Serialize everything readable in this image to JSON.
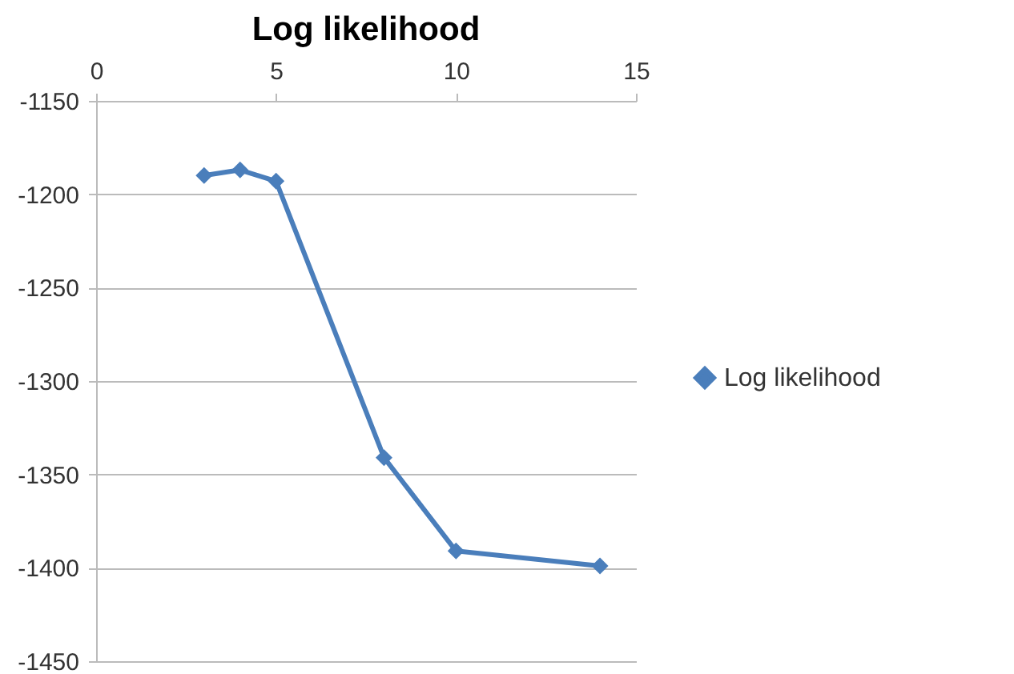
{
  "chart_data": {
    "type": "line",
    "title": "Log likelihood",
    "x": [
      3,
      4,
      5,
      8,
      10,
      14
    ],
    "series": [
      {
        "name": "Log likelihood",
        "color": "#4a7ebb",
        "values": [
          -1190,
          -1187,
          -1193,
          -1341,
          -1391,
          -1399
        ]
      }
    ],
    "xlim": [
      0,
      15
    ],
    "xticks": [
      0,
      5,
      10,
      15
    ],
    "ylim": [
      -1450,
      -1150
    ],
    "yticks": [
      -1450,
      -1400,
      -1350,
      -1300,
      -1250,
      -1200,
      -1150
    ],
    "grid": "y",
    "legend": "right",
    "marker": "diamond",
    "line_style": "solid"
  }
}
